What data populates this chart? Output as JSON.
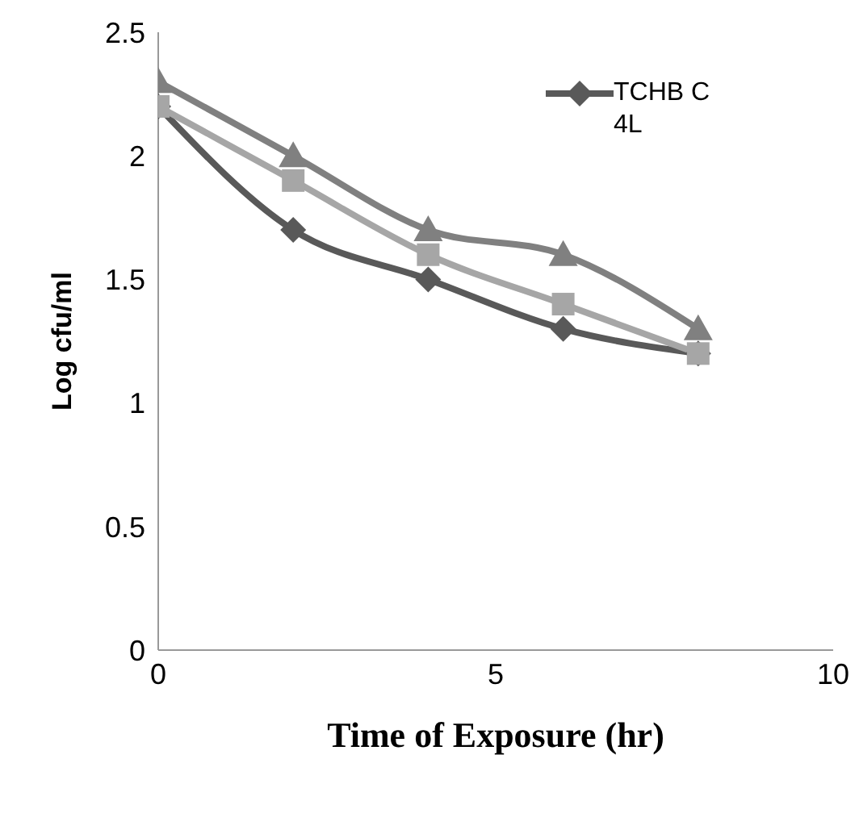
{
  "chart_data": {
    "type": "line",
    "xlabel": "Time of Exposure (hr)",
    "ylabel": "Log cfu/ml",
    "x": [
      0,
      2,
      4,
      6,
      8
    ],
    "series": [
      {
        "name": "TCHB C 4L",
        "color": "#595959",
        "marker": "diamond",
        "values": [
          2.2,
          1.7,
          1.5,
          1.3,
          1.2
        ]
      },
      {
        "color": "#a6a6a6",
        "marker": "square",
        "values": [
          2.2,
          1.9,
          1.6,
          1.4,
          1.2
        ]
      },
      {
        "color": "#808080",
        "marker": "triangle",
        "values": [
          2.3,
          2.0,
          1.7,
          1.6,
          1.3
        ]
      }
    ],
    "xlim": [
      0,
      10
    ],
    "xticks": [
      0,
      5,
      10
    ],
    "ylim": [
      0,
      2.5
    ],
    "yticks": [
      0,
      0.5,
      1,
      1.5,
      2,
      2.5
    ],
    "grid": false,
    "legend": "top right",
    "line_style": "solid"
  }
}
